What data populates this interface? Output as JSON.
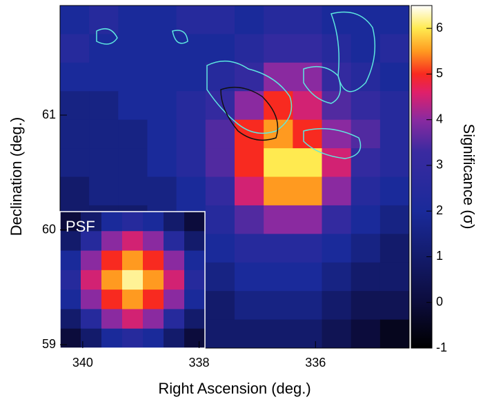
{
  "chart_data": {
    "type": "heatmap",
    "xlabel": "Right Ascension (deg.)",
    "ylabel": "Declination (deg.)",
    "colorbar_label": "Significance (σ)",
    "xlim": [
      340.39,
      334.39
    ],
    "ylim": [
      58.97,
      61.955
    ],
    "xticks": [
      340,
      338,
      336
    ],
    "yticks": [
      59,
      60,
      61
    ],
    "clim": [
      -1,
      6.5
    ],
    "cticks": [
      -1,
      0,
      1,
      2,
      3,
      4,
      5,
      6
    ],
    "colorscale": [
      [
        -1,
        "#000000"
      ],
      [
        0,
        "#0c0c3c"
      ],
      [
        2,
        "#1a2a9a"
      ],
      [
        3.3,
        "#3a2aa0"
      ],
      [
        4,
        "#8a2aa0"
      ],
      [
        4.6,
        "#e0206a"
      ],
      [
        5,
        "#f82a20"
      ],
      [
        5.5,
        "#ff9a20"
      ],
      [
        6,
        "#ffea50"
      ],
      [
        6.5,
        "#ffffff"
      ]
    ],
    "z": [
      [
        2,
        2.5,
        2,
        2,
        2.5,
        2.5,
        2,
        2.5,
        2.5,
        2,
        2,
        2
      ],
      [
        2.5,
        2,
        2,
        2,
        2,
        2,
        2.5,
        3,
        3,
        2.5,
        2,
        2.5
      ],
      [
        2,
        2,
        2,
        2,
        2,
        2.5,
        3,
        4,
        4,
        3,
        2.5,
        2
      ],
      [
        1.5,
        1.5,
        2,
        2,
        2.5,
        3,
        4,
        5,
        4.5,
        3.5,
        3,
        2.5
      ],
      [
        1.5,
        1.5,
        1.5,
        2,
        2.5,
        3.5,
        5,
        5.5,
        5,
        4,
        3.5,
        2.5
      ],
      [
        1.5,
        1.5,
        1.5,
        2,
        2.5,
        3.5,
        5,
        6,
        6,
        4.5,
        3,
        2.5
      ],
      [
        1,
        1.5,
        1.5,
        1.5,
        2,
        3,
        4.5,
        5.5,
        5.5,
        4,
        2.5,
        2
      ],
      [
        1,
        1,
        1,
        1.5,
        2,
        2.5,
        3.5,
        4,
        4,
        3,
        2,
        1.5
      ],
      [
        0.5,
        0.5,
        1,
        1,
        1.5,
        2,
        2.5,
        2.5,
        2.5,
        2,
        1.5,
        1
      ],
      [
        0.5,
        0.5,
        1,
        1,
        1,
        1.5,
        2,
        2,
        2,
        1.5,
        1,
        1
      ],
      [
        0,
        0.5,
        0.5,
        1,
        1,
        1,
        1.5,
        1.5,
        1.5,
        1,
        0.5,
        0.5
      ],
      [
        0,
        0,
        0.5,
        0.5,
        0.5,
        1,
        1,
        1,
        1,
        0.5,
        0,
        -0.5
      ]
    ],
    "psf": {
      "label": "PSF",
      "z": [
        [
          0,
          1,
          2,
          2.5,
          2,
          1,
          0
        ],
        [
          1,
          2.5,
          4,
          4.5,
          4,
          2.5,
          1
        ],
        [
          2,
          4,
          5,
          5.5,
          5,
          4,
          2
        ],
        [
          2.5,
          4.5,
          5.5,
          6.2,
          5.5,
          4.5,
          2.5
        ],
        [
          2,
          4,
          5,
          5.5,
          5,
          4,
          2
        ],
        [
          1,
          2.5,
          4,
          4.5,
          4,
          2.5,
          1
        ],
        [
          0,
          1,
          2,
          2.5,
          2,
          1,
          0
        ]
      ]
    }
  }
}
